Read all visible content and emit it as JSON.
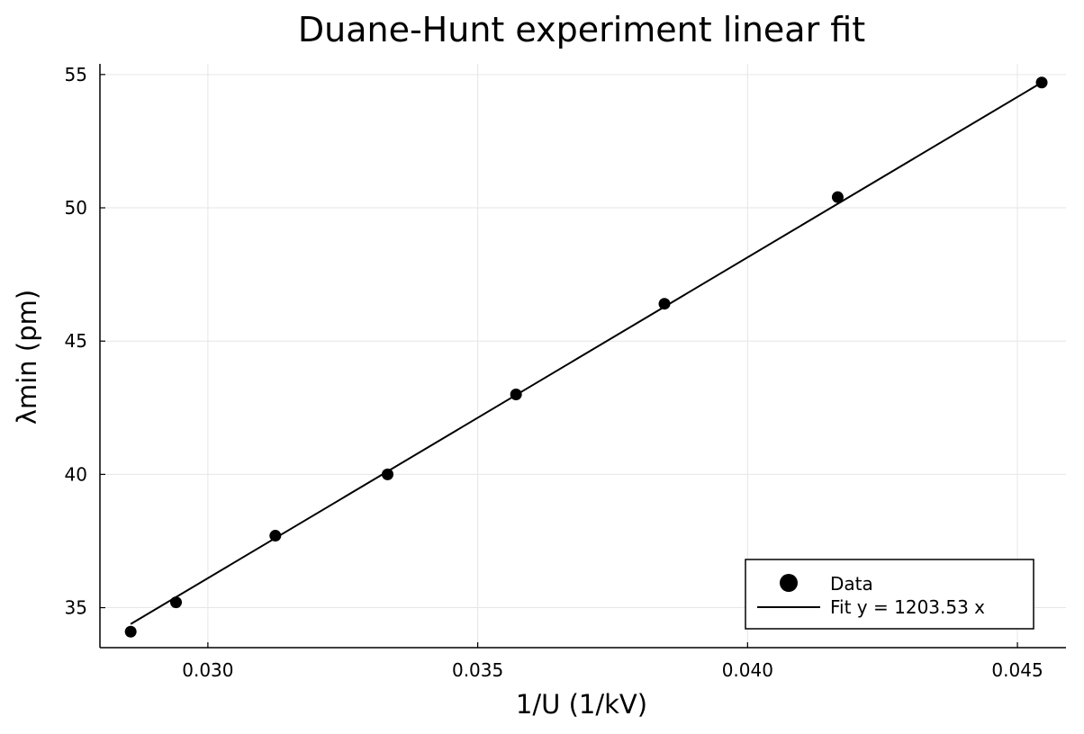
{
  "chart_data": {
    "type": "scatter",
    "title": "Duane-Hunt experiment linear fit",
    "xlabel": "1/U (1/kV)",
    "ylabel": "λmin (pm)",
    "xlim": [
      0.028,
      0.0459
    ],
    "ylim": [
      33.5,
      55.4
    ],
    "xticks": [
      0.03,
      0.035,
      0.04,
      0.045
    ],
    "xtick_labels": [
      "0.030",
      "0.035",
      "0.040",
      "0.045"
    ],
    "yticks": [
      35,
      40,
      45,
      50,
      55
    ],
    "ytick_labels": [
      "35",
      "40",
      "45",
      "50",
      "55"
    ],
    "grid": true,
    "legend_position": "bottom-right",
    "series": [
      {
        "name": "Data",
        "kind": "scatter",
        "color": "#000000",
        "x": [
          0.02857,
          0.02941,
          0.03125,
          0.03333,
          0.03571,
          0.03846,
          0.04167,
          0.04545
        ],
        "y": [
          34.1,
          35.2,
          37.7,
          40.0,
          43.0,
          46.4,
          50.4,
          54.7
        ]
      },
      {
        "name": "Fit y = 1203.53 x",
        "kind": "line",
        "color": "#000000",
        "slope": 1203.53,
        "x_range": [
          0.02857,
          0.04545
        ]
      }
    ]
  }
}
